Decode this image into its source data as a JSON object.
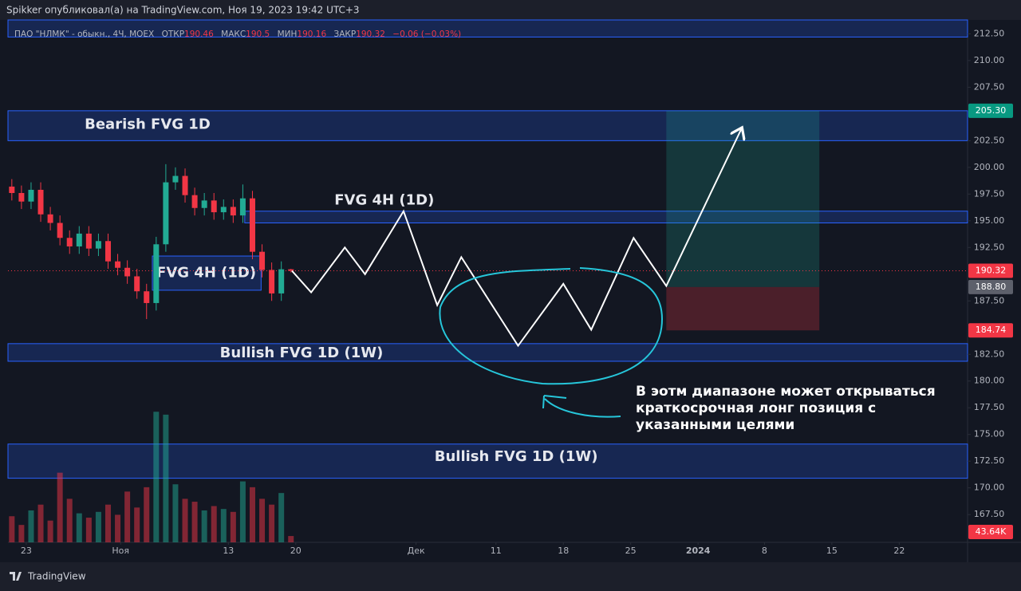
{
  "header": {
    "publisher": "Spikker опубликовал(а) на TradingView.com, Ноя 19, 2023 19:42 UTC+3"
  },
  "chart_data": {
    "type": "candlestick",
    "symbol": "ПАО \"НЛМК\" - обыкн., 4Ч, MOEX",
    "legend": {
      "open_label": "ОТКР",
      "open": 190.46,
      "high_label": "МАКС",
      "high": 190.5,
      "low_label": "МИН",
      "low": 190.16,
      "close_label": "ЗАКР",
      "close": 190.32,
      "change": "−0.06 (−0.03%)"
    },
    "x": [
      -1.5,
      -0.5,
      0.5,
      1.5,
      2.5,
      3.5,
      4.5,
      5.5,
      6.5,
      7.5,
      8.5,
      9.5,
      10.5,
      11.5,
      12.5,
      13.5,
      14.5,
      15.5,
      16.5,
      17.5,
      18.5,
      19.5,
      20.5,
      21.5,
      22.5,
      23.5,
      24.5,
      25.5,
      26.5,
      27.5
    ],
    "open": [
      198.2,
      197.6,
      196.8,
      197.9,
      195.6,
      194.8,
      193.4,
      192.6,
      193.8,
      192.4,
      193.1,
      191.2,
      190.6,
      189.8,
      188.4,
      187.3,
      192.8,
      198.6,
      199.2,
      197.4,
      196.2,
      196.9,
      195.8,
      196.3,
      195.5,
      197.1,
      192.1,
      190.4,
      188.2,
      190.46
    ],
    "high": [
      198.9,
      198.3,
      198.6,
      198.6,
      196.3,
      195.5,
      194.1,
      194.5,
      194.5,
      193.8,
      193.8,
      191.9,
      191.3,
      190.5,
      189.1,
      193.5,
      200.3,
      200.0,
      199.9,
      198.1,
      197.6,
      197.6,
      197.0,
      197.0,
      198.4,
      197.8,
      192.8,
      191.1,
      191.2,
      190.5
    ],
    "low": [
      196.9,
      196.1,
      196.1,
      194.9,
      194.1,
      192.7,
      191.9,
      191.9,
      191.7,
      191.7,
      190.5,
      189.9,
      189.1,
      187.7,
      185.8,
      186.6,
      192.1,
      197.9,
      196.7,
      195.5,
      195.5,
      195.1,
      195.1,
      194.8,
      194.8,
      191.4,
      189.7,
      187.5,
      187.5,
      190.16
    ],
    "close": [
      197.6,
      196.8,
      197.9,
      195.6,
      194.8,
      193.4,
      192.6,
      193.8,
      192.4,
      193.1,
      191.2,
      190.6,
      189.8,
      188.4,
      187.3,
      192.8,
      198.6,
      199.2,
      197.4,
      196.2,
      196.9,
      195.8,
      196.3,
      195.5,
      197.1,
      192.1,
      190.4,
      188.2,
      190.46,
      190.32
    ],
    "volume": [
      180000,
      120000,
      220000,
      260000,
      150000,
      480000,
      300000,
      200000,
      170000,
      210000,
      260000,
      190000,
      350000,
      240000,
      380000,
      900000,
      880000,
      400000,
      300000,
      280000,
      220000,
      250000,
      230000,
      210000,
      420000,
      380000,
      300000,
      260000,
      340000,
      43640
    ],
    "last_volume": {
      "value": 43640,
      "label": "43.64K"
    },
    "up_color": "#22ab94",
    "down_color": "#f23645",
    "xlim": [
      -1.9,
      97.8
    ],
    "xticks": [
      {
        "value": 0,
        "label": "23"
      },
      {
        "value": 9.8,
        "label": "Ноя"
      },
      {
        "value": 21,
        "label": "13"
      },
      {
        "value": 28,
        "label": "20"
      },
      {
        "value": 40.5,
        "label": "Дек"
      },
      {
        "value": 48.8,
        "label": "11"
      },
      {
        "value": 55.8,
        "label": "18"
      },
      {
        "value": 62.8,
        "label": "25"
      },
      {
        "value": 69.8,
        "label": "2024"
      },
      {
        "value": 76.7,
        "label": "8"
      },
      {
        "value": 83.7,
        "label": "15"
      },
      {
        "value": 90.7,
        "label": "22"
      }
    ],
    "ylim": [
      164.9,
      213.8
    ],
    "yticks": [
      {
        "value": 212.5,
        "label": "212.50"
      },
      {
        "value": 210,
        "label": "210.00"
      },
      {
        "value": 207.5,
        "label": "207.50"
      },
      {
        "value": 202.5,
        "label": "202.50"
      },
      {
        "value": 200,
        "label": "200.00"
      },
      {
        "value": 197.5,
        "label": "197.50"
      },
      {
        "value": 195,
        "label": "195.00"
      },
      {
        "value": 192.5,
        "label": "192.50"
      },
      {
        "value": 187.5,
        "label": "187.50"
      },
      {
        "value": 182.5,
        "label": "182.50"
      },
      {
        "value": 180,
        "label": "180.00"
      },
      {
        "value": 177.5,
        "label": "177.50"
      },
      {
        "value": 175,
        "label": "175.00"
      },
      {
        "value": 172.5,
        "label": "172.50"
      },
      {
        "value": 170,
        "label": "170.00"
      },
      {
        "value": 167.5,
        "label": "167.50"
      }
    ],
    "volume_lim": [
      0,
      3600000
    ],
    "last_price": 190.32,
    "price_labels": [
      {
        "value": 205.3,
        "label": "205.30",
        "color": "#089981"
      },
      {
        "value": 190.32,
        "label": "190.32",
        "color": "#f23645"
      },
      {
        "value": 188.8,
        "label": "188.80",
        "color": "#5d606b"
      },
      {
        "value": 184.74,
        "label": "184.74",
        "color": "#f23645"
      }
    ],
    "zones": [
      {
        "start": -1.9,
        "end": 97.8,
        "low": 212.2,
        "high": 213.8
      },
      {
        "start": -1.9,
        "end": 97.8,
        "low": 202.5,
        "high": 205.3,
        "text": "Bearish FVG 1D",
        "text_x": 12.6,
        "text_y": 204
      },
      {
        "start": 22.7,
        "end": 97.8,
        "low": 194.8,
        "high": 195.9,
        "text": "FVG 4H (1D)",
        "text_x": 37.2,
        "text_y": 196.9
      },
      {
        "start": 13.1,
        "end": 24.4,
        "low": 188.5,
        "high": 191.7,
        "text": "FVG 4H (1D)",
        "text_x": 18.7,
        "text_y": 190.1
      },
      {
        "start": -1.9,
        "end": 97.8,
        "low": 181.85,
        "high": 183.5,
        "text": "Bullish FVG 1D (1W)",
        "text_x": 28.6,
        "text_y": 182.6
      },
      {
        "start": -1.9,
        "end": 97.8,
        "low": 170.9,
        "high": 174.1,
        "text": "Bullish FVG 1D (1W)",
        "text_x": 50.9,
        "text_y": 172.9
      }
    ],
    "projection": {
      "x": [
        27.6,
        29.6,
        33.1,
        35.2,
        39.2,
        42.7,
        45.2,
        51.1,
        55.8,
        58.7,
        63.1,
        66.5,
        74.3
      ],
      "y": [
        190.32,
        188.3,
        192.5,
        190.0,
        195.9,
        187.1,
        191.6,
        183.3,
        189.1,
        184.8,
        193.4,
        188.9,
        203.6
      ]
    },
    "position": {
      "start": 66.5,
      "end": 82.4,
      "entry": 188.8,
      "target": 205.3,
      "stop": 184.74
    },
    "annotation": [
      "В эотм диапазоне может открываться",
      "краткосрочная лонг позиция с",
      "указанными целями"
    ]
  },
  "footer": {
    "brand": "TradingView"
  }
}
